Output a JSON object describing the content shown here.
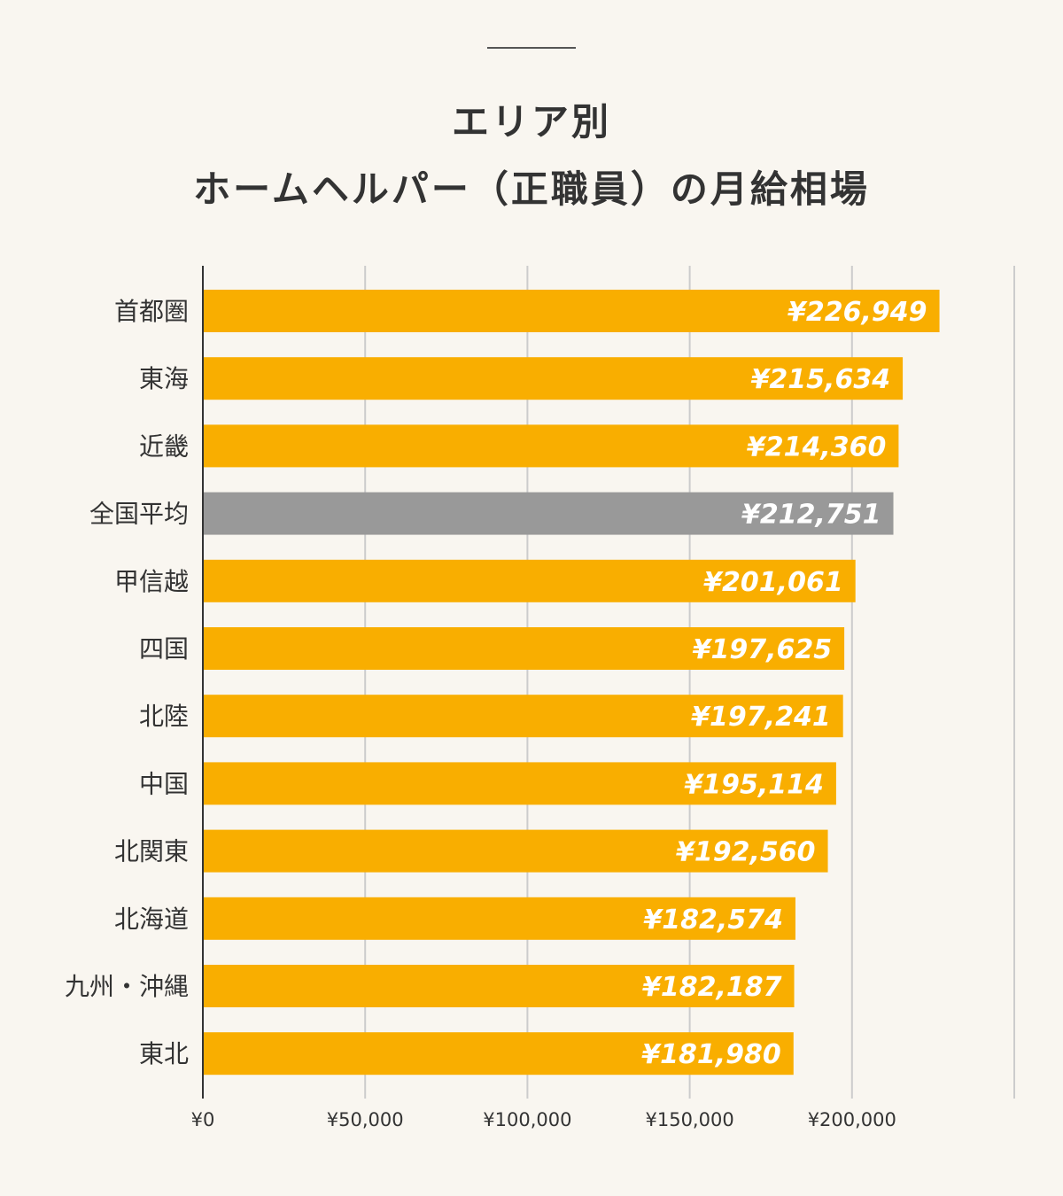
{
  "chart_data": {
    "type": "bar",
    "orientation": "horizontal",
    "title_lines": [
      "エリア別",
      "ホームヘルパー（正職員）の月給相場"
    ],
    "categories": [
      "首都圏",
      "東海",
      "近畿",
      "全国平均",
      "甲信越",
      "四国",
      "北陸",
      "中国",
      "北関東",
      "北海道",
      "九州・沖縄",
      "東北"
    ],
    "values": [
      226949,
      215634,
      214360,
      212751,
      201061,
      197625,
      197241,
      195114,
      192560,
      182574,
      182187,
      181980
    ],
    "value_labels": [
      "¥226,949",
      "¥215,634",
      "¥214,360",
      "¥212,751",
      "¥201,061",
      "¥197,625",
      "¥197,241",
      "¥195,114",
      "¥192,560",
      "¥182,574",
      "¥182,187",
      "¥181,980"
    ],
    "highlight_category": "全国平均",
    "xlim": [
      0,
      250000
    ],
    "xticks": [
      0,
      50000,
      100000,
      150000,
      200000,
      250000
    ],
    "xtick_labels": [
      "¥0",
      "¥50,000",
      "¥100,000",
      "¥150,000",
      "¥200,000",
      ""
    ],
    "grid": true,
    "colors": {
      "bar": "#f9ae00",
      "highlight": "#999999",
      "grid": "#cccccc",
      "axis": "#333333"
    }
  }
}
